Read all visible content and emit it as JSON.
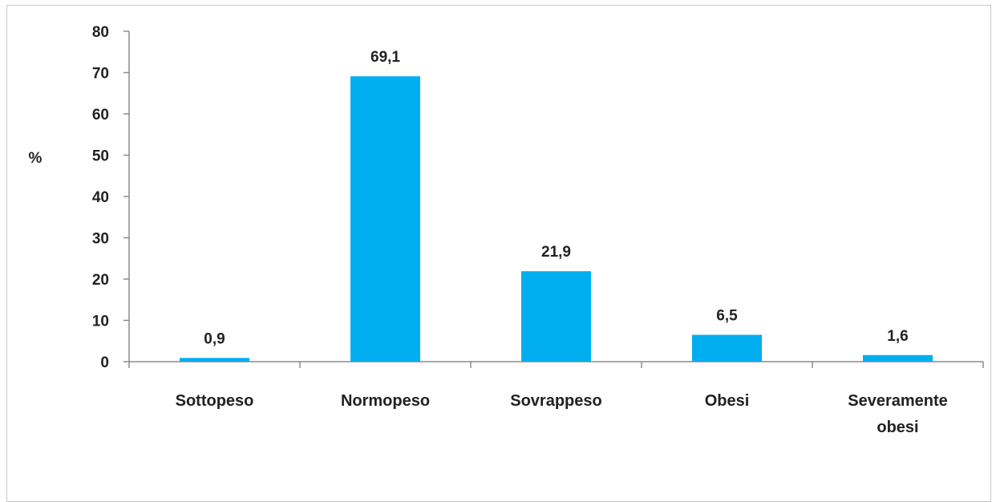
{
  "chart_data": {
    "type": "bar",
    "categories": [
      "Sottopeso",
      "Normopeso",
      "Sovrappeso",
      "Obesi",
      "Severamente obesi"
    ],
    "values": [
      0.9,
      69.1,
      21.9,
      6.5,
      1.6
    ],
    "data_labels": [
      "0,9",
      "69,1",
      "21,9",
      "6,5",
      "1,6"
    ],
    "category_label_lines": [
      [
        "Sottopeso"
      ],
      [
        "Normopeso"
      ],
      [
        "Sovrappeso"
      ],
      [
        "Obesi"
      ],
      [
        "Severamente",
        "obesi"
      ]
    ],
    "title": "",
    "xlabel": "",
    "ylabel": "%",
    "ylim": [
      0,
      80
    ],
    "yticks": [
      0,
      10,
      20,
      30,
      40,
      50,
      60,
      70,
      80
    ],
    "grid": false,
    "legend": "none",
    "colors": {
      "bar": "#00AEEF",
      "axis": "#8c8c8c",
      "text": "#222222"
    }
  }
}
